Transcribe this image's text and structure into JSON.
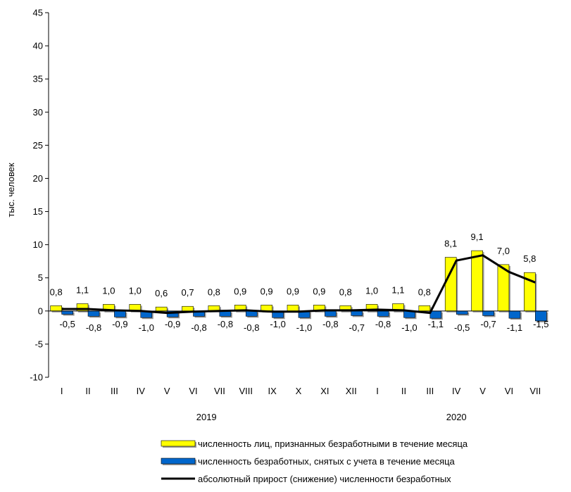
{
  "chart_data": {
    "type": "bar",
    "ylabel": "тыс. человек",
    "ylim": [
      -10,
      45
    ],
    "yticks": [
      -10,
      -5,
      0,
      5,
      10,
      15,
      20,
      25,
      30,
      35,
      40,
      45
    ],
    "categories": [
      "I",
      "II",
      "III",
      "IV",
      "V",
      "VI",
      "VII",
      "VIII",
      "IX",
      "X",
      "XI",
      "XII",
      "I",
      "II",
      "III",
      "IV",
      "V",
      "VI",
      "VII"
    ],
    "year_groups": [
      {
        "label": "2019",
        "start": 0,
        "end": 11
      },
      {
        "label": "2020",
        "start": 12,
        "end": 18
      }
    ],
    "grid": false,
    "legend_position": "bottom",
    "series": [
      {
        "name": "численность лиц, признанных безработными в течение месяца",
        "kind": "bar",
        "color": "#ffff00",
        "values": [
          0.8,
          1.1,
          1.0,
          1.0,
          0.6,
          0.7,
          0.8,
          0.9,
          0.9,
          0.9,
          0.9,
          0.8,
          1.0,
          1.1,
          0.8,
          8.1,
          9.1,
          7.0,
          5.8
        ],
        "labels": [
          "0,8",
          "1,1",
          "1,0",
          "1,0",
          "0,6",
          "0,7",
          "0,8",
          "0,9",
          "0,9",
          "0,9",
          "0,9",
          "0,8",
          "1,0",
          "1,1",
          "0,8",
          "8,1",
          "9,1",
          "7,0",
          "5,8"
        ]
      },
      {
        "name": "численность безработных, снятых с учета в течение месяца",
        "kind": "bar",
        "color": "#0066cc",
        "values": [
          -0.5,
          -0.8,
          -0.9,
          -1.0,
          -0.9,
          -0.8,
          -0.8,
          -0.8,
          -1.0,
          -1.0,
          -0.8,
          -0.7,
          -0.8,
          -1.0,
          -1.1,
          -0.5,
          -0.7,
          -1.1,
          -1.5
        ],
        "labels": [
          "-0,5",
          "-0,8",
          "-0,9",
          "-1,0",
          "-0,9",
          "-0,8",
          "-0,8",
          "-0,8",
          "-1,0",
          "-1,0",
          "-0,8",
          "-0,7",
          "-0,8",
          "-1,0",
          "-1,1",
          "-0,5",
          "-0,7",
          "-1,1",
          "-1,5"
        ]
      },
      {
        "name": "абсолютный прирост (снижение) численности безработных",
        "kind": "line",
        "color": "#000000",
        "values": [
          0.3,
          0.3,
          0.1,
          0.0,
          -0.3,
          -0.1,
          0.0,
          0.1,
          -0.1,
          -0.1,
          0.1,
          0.1,
          0.2,
          0.1,
          -0.3,
          7.6,
          8.4,
          5.9,
          4.3
        ]
      }
    ]
  }
}
